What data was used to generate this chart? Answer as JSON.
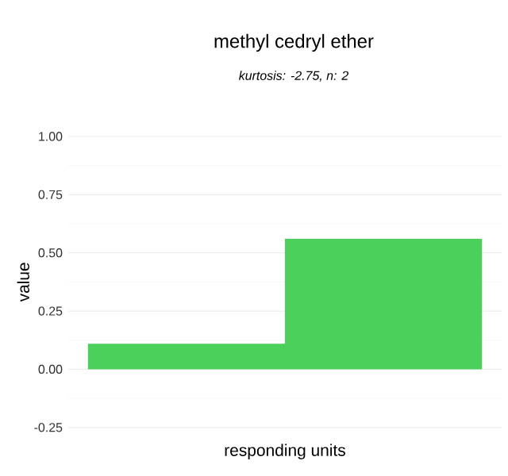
{
  "chart_data": {
    "type": "bar",
    "title": "methyl cedryl ether",
    "subtitle": "kurtosis: -2.75, n: 2",
    "xlabel": "responding units",
    "ylabel": "value",
    "categories": [
      null,
      null
    ],
    "values": [
      0.11,
      0.56
    ],
    "color": "#4cd05c",
    "ylim": [
      -0.25,
      1
    ],
    "yticks": [
      {
        "value": -0.25,
        "label": "-0.25"
      },
      {
        "value": 0,
        "label": "0.00"
      },
      {
        "value": 0.25,
        "label": "0.25"
      },
      {
        "value": 0.5,
        "label": "0.50"
      },
      {
        "value": 0.75,
        "label": "0.75"
      },
      {
        "value": 1,
        "label": "1.00"
      }
    ],
    "grid": "y"
  }
}
